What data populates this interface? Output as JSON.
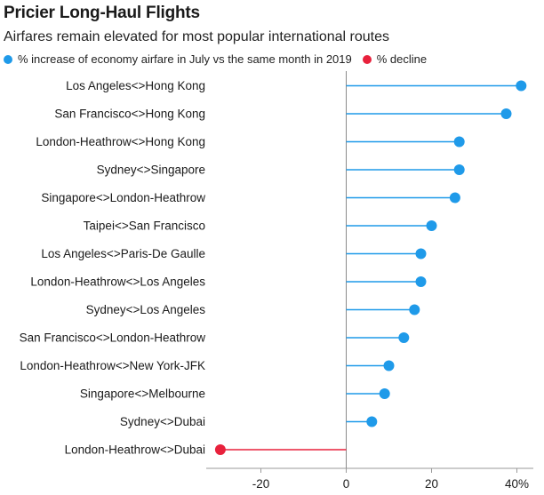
{
  "title": "Pricier Long-Haul Flights",
  "subtitle": "Airfares remain elevated for most popular international routes",
  "legend": [
    {
      "label": "% increase of economy airfare in July vs the same month in 2019",
      "color": "#1f9ae9"
    },
    {
      "label": "% decline",
      "color": "#e8213c"
    }
  ],
  "chart_data": {
    "type": "lollipop",
    "title": "Pricier Long-Haul Flights",
    "xlabel": "",
    "ylabel": "",
    "xlim": [
      -30,
      42
    ],
    "x_ticks": [
      -20,
      0,
      20,
      40
    ],
    "x_tick_labels": [
      "-20",
      "0",
      "20",
      "40%"
    ],
    "categories": [
      "Los Angeles<>Hong Kong",
      "San Francisco<>Hong Kong",
      "London-Heathrow<>Hong Kong",
      "Sydney<>Singapore",
      "Singapore<>London-Heathrow",
      "Taipei<>San Francisco",
      "Los Angeles<>Paris-De Gaulle",
      "London-Heathrow<>Los Angeles",
      "Sydney<>Los Angeles",
      "San Francisco<>London-Heathrow",
      "London-Heathrow<>New York-JFK",
      "Singapore<>Melbourne",
      "Sydney<>Dubai",
      "London-Heathrow<>Dubai"
    ],
    "values": [
      41,
      37.5,
      26.5,
      26.5,
      25.5,
      20,
      17.5,
      17.5,
      16,
      13.5,
      10,
      9,
      6,
      -29.5
    ],
    "colors": {
      "increase": "#1f9ae9",
      "decline": "#e8213c"
    }
  }
}
